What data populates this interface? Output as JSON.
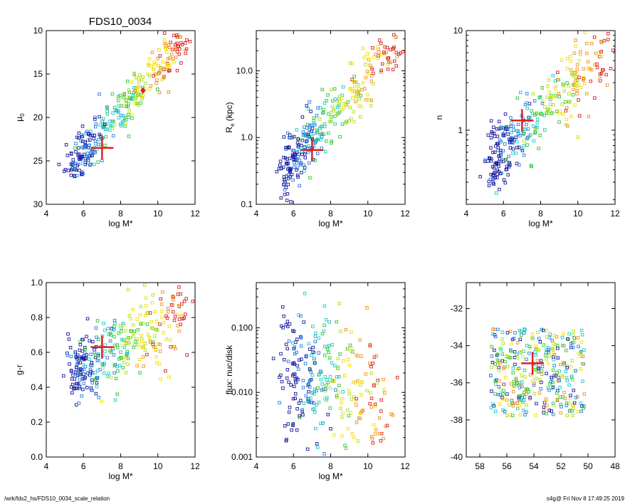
{
  "title": "FDS10_0034",
  "footer": {
    "left": "/wrk/fds2_hs/FDS10_0034_scale_relation",
    "right": "s4g@  Fri Nov  8 17:49:25 2019"
  },
  "colors": {
    "marker": "#e02020",
    "scale": [
      "#1a1aa0",
      "#2a7fe0",
      "#20c8c8",
      "#30c830",
      "#b0e020",
      "#f0e000",
      "#f09020",
      "#d82020"
    ]
  },
  "chart_data": [
    {
      "type": "scatter",
      "id": "mu0",
      "xlabel": "log M*",
      "ylabel": "μ",
      "ylabel_sub": "0",
      "xlim": [
        4,
        12
      ],
      "ylim": [
        30,
        10
      ],
      "yscale": "linear",
      "xticks": [
        "4",
        "6",
        "8",
        "10",
        "12"
      ],
      "xtick_values": [
        4,
        6,
        8,
        10,
        12
      ],
      "yticks": [
        "10",
        "15",
        "20",
        "25",
        "30"
      ],
      "ytick_values": [
        10,
        15,
        20,
        25,
        30
      ],
      "grid": false,
      "marker": {
        "x": 7.0,
        "y": 23.5
      },
      "highlight": [
        {
          "x": 9.2,
          "y": 16.9
        }
      ],
      "trend": {
        "x0": 5.5,
        "x1": 11.5,
        "y0": 25.3,
        "y1": 11.0,
        "spread": 1.3,
        "n": 330
      }
    },
    {
      "type": "scatter",
      "id": "re",
      "xlabel": "log M*",
      "ylabel": "R",
      "ylabel_sub": "e",
      "ylabel_suffix": " (kpc)",
      "xlim": [
        4,
        12
      ],
      "ylim": [
        0.1,
        40
      ],
      "yscale": "log",
      "xticks": [
        "4",
        "6",
        "8",
        "10",
        "12"
      ],
      "xtick_values": [
        4,
        6,
        8,
        10,
        12
      ],
      "yticks": [
        "0.1",
        "1.0",
        "10.0"
      ],
      "ytick_values": [
        0.1,
        1.0,
        10.0
      ],
      "grid": false,
      "marker": {
        "x": 7.0,
        "y": 0.65
      },
      "trend": {
        "x0": 5.5,
        "x1": 11.6,
        "y0": 0.35,
        "y1": 25.0,
        "spread": 0.22,
        "n": 330
      }
    },
    {
      "type": "scatter",
      "id": "n",
      "xlabel": "log M*",
      "ylabel": "n",
      "xlim": [
        4,
        12
      ],
      "ylim": [
        0.18,
        10
      ],
      "yscale": "log",
      "xticks": [
        "4",
        "6",
        "8",
        "10",
        "12"
      ],
      "xtick_values": [
        4,
        6,
        8,
        10,
        12
      ],
      "yticks": [
        "1",
        "10"
      ],
      "ytick_values": [
        1,
        10
      ],
      "grid": false,
      "marker": {
        "x": 7.0,
        "y": 1.25
      },
      "trend": {
        "x0": 5.5,
        "x1": 11.5,
        "y0": 0.5,
        "y1": 6.0,
        "spread": 0.17,
        "n": 330
      }
    },
    {
      "type": "scatter",
      "id": "gr",
      "xlabel": "log M*",
      "ylabel": "g-r",
      "xlim": [
        4,
        12
      ],
      "ylim": [
        0.0,
        1.0
      ],
      "yscale": "linear",
      "xticks": [
        "4",
        "6",
        "8",
        "10",
        "12"
      ],
      "xtick_values": [
        4,
        6,
        8,
        10,
        12
      ],
      "yticks": [
        "0.0",
        "0.2",
        "0.4",
        "0.6",
        "0.8",
        "1.0"
      ],
      "ytick_values": [
        0.0,
        0.2,
        0.4,
        0.6,
        0.8,
        1.0
      ],
      "grid": false,
      "marker": {
        "x": 7.0,
        "y": 0.63
      },
      "trend": {
        "x0": 5.5,
        "x1": 11.5,
        "y0": 0.5,
        "y1": 0.82,
        "spread": 0.11,
        "n": 330
      }
    },
    {
      "type": "scatter",
      "id": "flux",
      "xlabel": "log M*",
      "ylabel": "flux: nuc/disk",
      "xlim": [
        4,
        12
      ],
      "ylim": [
        0.001,
        0.5
      ],
      "yscale": "log",
      "xticks": [
        "4",
        "6",
        "8",
        "10",
        "12"
      ],
      "xtick_values": [
        4,
        6,
        8,
        10,
        12
      ],
      "yticks": [
        "0.001",
        "0.010",
        "0.100"
      ],
      "ytick_values": [
        0.001,
        0.01,
        0.1
      ],
      "grid": false,
      "trend": {
        "x0": 5.8,
        "x1": 11.2,
        "y0": 0.02,
        "y1": 0.006,
        "spread": 0.5,
        "n": 290
      }
    },
    {
      "type": "scatter",
      "id": "dec",
      "xlabel": "",
      "ylabel": "",
      "xlim": [
        59,
        48
      ],
      "ylim": [
        -40,
        -30.6
      ],
      "yscale": "linear",
      "xticks": [
        "58",
        "56",
        "54",
        "52",
        "50",
        "48"
      ],
      "xtick_values": [
        58,
        56,
        54,
        52,
        50,
        48
      ],
      "yticks": [
        "-32",
        "-34",
        "-36",
        "-38",
        "-40"
      ],
      "ytick_values": [
        -32,
        -34,
        -36,
        -38,
        -40
      ],
      "grid": false,
      "marker": {
        "x": 54.1,
        "y": -34.95
      },
      "field": {
        "xmin": 50.2,
        "xmax": 57.2,
        "ymin": -37.8,
        "ymax": -33.1,
        "n": 340
      }
    }
  ]
}
